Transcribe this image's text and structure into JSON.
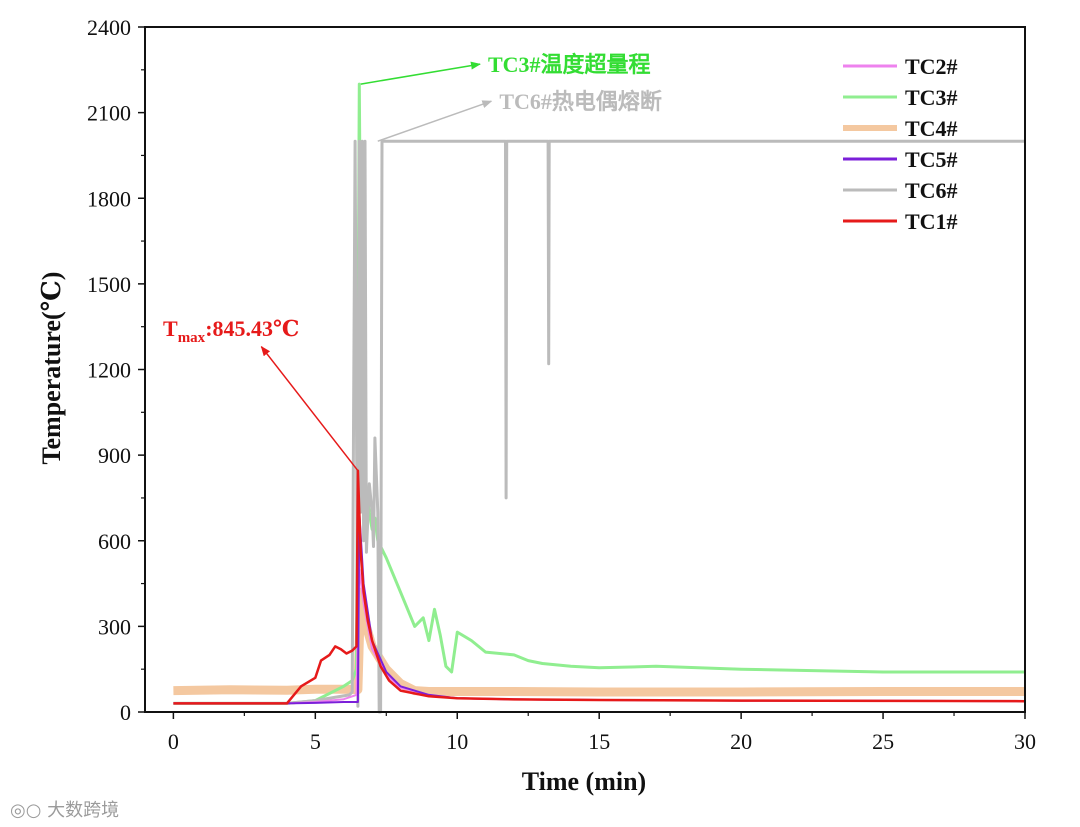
{
  "chart_data": {
    "type": "line",
    "xlabel": "Time (min)",
    "ylabel": "Temperature(℃)",
    "xlim": [
      -1,
      30
    ],
    "ylim": [
      0,
      2400
    ],
    "xticks": [
      "0",
      "5",
      "10",
      "15",
      "20",
      "25",
      "30"
    ],
    "yticks": [
      "0",
      "300",
      "600",
      "900",
      "1200",
      "1500",
      "1800",
      "2100",
      "2400"
    ],
    "grid": false,
    "legend_position": "top-right",
    "series": [
      {
        "name": "TC2#",
        "color": "#ee82ee",
        "x": [
          0,
          4,
          5,
          6,
          6.45,
          6.55,
          6.7,
          7,
          7.5,
          8,
          9,
          10,
          12,
          15,
          20,
          30
        ],
        "y": [
          30,
          30,
          35,
          45,
          60,
          500,
          380,
          220,
          130,
          85,
          60,
          48,
          44,
          42,
          40,
          38
        ]
      },
      {
        "name": "TC3#",
        "color": "#90ee90",
        "x": [
          0,
          4,
          5,
          6,
          6.3,
          6.45,
          6.55,
          6.6,
          6.7,
          6.8,
          6.9,
          7,
          7.1,
          7.2,
          7.5,
          8,
          8.5,
          8.8,
          9,
          9.2,
          9.4,
          9.6,
          9.8,
          10,
          10.5,
          11,
          12,
          12.5,
          13,
          14,
          15,
          17,
          20,
          25,
          30
        ],
        "y": [
          30,
          30,
          40,
          90,
          110,
          150,
          2200,
          1500,
          900,
          780,
          700,
          640,
          680,
          600,
          540,
          420,
          300,
          330,
          250,
          360,
          270,
          160,
          140,
          280,
          250,
          210,
          200,
          180,
          170,
          160,
          155,
          160,
          150,
          140,
          140
        ]
      },
      {
        "name": "TC4#",
        "color": "#f4c8a0",
        "x": [
          0,
          2,
          4,
          5,
          6,
          6.5,
          6.6,
          6.8,
          7,
          7.5,
          8,
          8.5,
          9,
          10,
          12,
          15,
          20,
          25,
          30
        ],
        "y": [
          75,
          78,
          76,
          80,
          80,
          78,
          420,
          300,
          230,
          150,
          100,
          75,
          72,
          72,
          72,
          70,
          70,
          72,
          72
        ]
      },
      {
        "name": "TC5#",
        "color": "#7b1fd9",
        "x": [
          0,
          4,
          5,
          6,
          6.4,
          6.5,
          6.55,
          6.7,
          7,
          7.5,
          8,
          9,
          10,
          12,
          15,
          20,
          30
        ],
        "y": [
          30,
          30,
          32,
          35,
          35,
          35,
          700,
          450,
          250,
          140,
          90,
          60,
          48,
          44,
          42,
          40,
          38
        ]
      },
      {
        "name": "TC6#",
        "color": "#bbbbbb",
        "x": [
          0,
          4,
          5,
          6.2,
          6.3,
          6.35,
          6.4,
          6.5,
          6.55,
          6.6,
          6.65,
          6.7,
          6.75,
          6.8,
          6.9,
          7,
          7.05,
          7.1,
          7.2,
          7.25,
          7.3,
          7.35,
          7.4,
          11.7,
          11.72,
          11.74,
          13.2,
          13.22,
          13.24,
          30
        ],
        "y": [
          30,
          30,
          40,
          60,
          70,
          1050,
          2000,
          20,
          2000,
          700,
          2000,
          600,
          2000,
          560,
          800,
          700,
          580,
          960,
          700,
          0,
          0,
          2000,
          2000,
          2000,
          750,
          2000,
          2000,
          1220,
          2000,
          2000
        ]
      },
      {
        "name": "TC1#",
        "color": "#e61a1a",
        "x": [
          0,
          4,
          4.5,
          5,
          5.2,
          5.5,
          5.7,
          5.9,
          6.1,
          6.3,
          6.45,
          6.5,
          6.55,
          6.6,
          6.7,
          6.85,
          7,
          7.3,
          7.6,
          8,
          9,
          10,
          12,
          15,
          20,
          25,
          30
        ],
        "y": [
          30,
          30,
          90,
          120,
          180,
          200,
          230,
          220,
          205,
          215,
          230,
          845.43,
          700,
          560,
          420,
          320,
          250,
          160,
          110,
          75,
          55,
          48,
          44,
          42,
          40,
          39,
          38
        ]
      }
    ],
    "annotations": [
      {
        "text": "TC3#温度超量程",
        "color": "#33dd33",
        "arrow_from": [
          6.6,
          2200
        ],
        "arrow_to": [
          10.8,
          2270
        ]
      },
      {
        "text": "TC6#热电偶熔断",
        "color": "#bbbbbb",
        "arrow_from": [
          7.2,
          2000
        ],
        "arrow_to": [
          11.2,
          2140
        ]
      },
      {
        "text_main": "T",
        "text_sub": "max",
        "text_value": ":845.43℃",
        "color": "#e61a1a",
        "arrow_from": [
          6.5,
          845.43
        ],
        "arrow_to": [
          3.1,
          1280
        ]
      }
    ]
  },
  "watermark": {
    "text": "大数跨境"
  }
}
